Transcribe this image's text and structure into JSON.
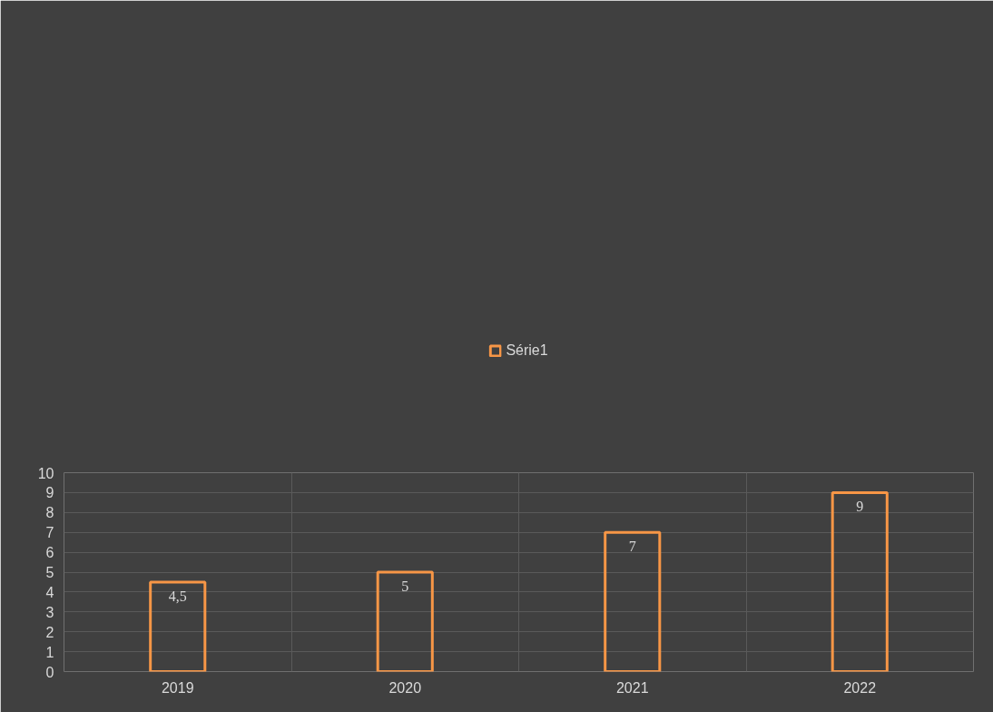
{
  "chart_data": {
    "type": "bar",
    "categories": [
      "2019",
      "2020",
      "2021",
      "2022"
    ],
    "series": [
      {
        "name": "Série1",
        "color": "#f79646",
        "values": [
          4.5,
          5,
          7,
          9
        ],
        "value_labels": [
          "4,5",
          "5",
          "7",
          "9"
        ]
      }
    ],
    "ylim": [
      0,
      10
    ],
    "yticks": [
      0,
      1,
      2,
      3,
      4,
      5,
      6,
      7,
      8,
      9,
      10
    ],
    "grid": true,
    "legend": "top"
  }
}
